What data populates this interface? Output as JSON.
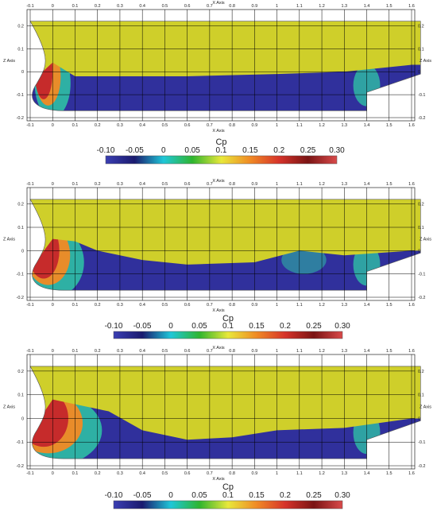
{
  "legend": {
    "title": "Cp",
    "ticks": [
      "-0.10",
      "-0.05",
      "0",
      "0.05",
      "0.1",
      "0.15",
      "0.2",
      "0.25",
      "0.30"
    ],
    "colors": [
      "#3b3fb3",
      "#1a1a6e",
      "#1fc7d8",
      "#2fb52f",
      "#e8e83a",
      "#f08a25",
      "#d6332a",
      "#7a1414",
      "#d94a4a"
    ]
  },
  "axes": {
    "x_title": "X Axis",
    "z_title": "Z Axis",
    "x_ticks": [
      "-0.1",
      "0",
      "0.1",
      "0.2",
      "0.3",
      "0.4",
      "0.5",
      "0.6",
      "0.7",
      "0.8",
      "0.9",
      "1",
      "1.1",
      "1.2",
      "1.3",
      "1.4",
      "1.5",
      "1.6"
    ],
    "z_ticks": [
      "0.2",
      "0.1",
      "0",
      "-0.1",
      "-0.2"
    ]
  },
  "colors": {
    "hull_above": "#cfcf2a",
    "hull_below": "#30309c",
    "high_pressure": "#c62b2b",
    "mid_pressure": "#e88c2a",
    "low_pressure": "#2fbfa5",
    "grid": "#000000"
  },
  "chart_data": [
    {
      "type": "heatmap",
      "title": "",
      "xlabel": "X Axis",
      "ylabel": "Z Axis",
      "xlim": [
        -0.1,
        1.6
      ],
      "ylim": [
        -0.2,
        0.2
      ],
      "x_ticks": [
        -0.1,
        0,
        0.1,
        0.2,
        0.3,
        0.4,
        0.5,
        0.6,
        0.7,
        0.8,
        0.9,
        1,
        1.1,
        1.2,
        1.3,
        1.4,
        1.5,
        1.6
      ],
      "z_ticks": [
        0.2,
        0.1,
        0,
        -0.1,
        -0.2
      ],
      "waterline": [
        [
          -0.1,
          -0.05
        ],
        [
          0.0,
          0.04
        ],
        [
          0.05,
          0.01
        ],
        [
          0.1,
          -0.02
        ],
        [
          0.3,
          -0.02
        ],
        [
          0.6,
          -0.02
        ],
        [
          1.0,
          -0.01
        ],
        [
          1.3,
          0.0
        ],
        [
          1.6,
          0.03
        ]
      ],
      "colorbar": {
        "label": "Cp",
        "range": [
          -0.1,
          0.3
        ]
      }
    },
    {
      "type": "heatmap",
      "title": "",
      "xlabel": "X Axis",
      "ylabel": "Z Axis",
      "xlim": [
        -0.1,
        1.6
      ],
      "ylim": [
        -0.2,
        0.2
      ],
      "x_ticks": [
        -0.1,
        0,
        0.1,
        0.2,
        0.3,
        0.4,
        0.5,
        0.6,
        0.7,
        0.8,
        0.9,
        1,
        1.1,
        1.2,
        1.3,
        1.4,
        1.5,
        1.6
      ],
      "z_ticks": [
        0.2,
        0.1,
        0,
        -0.1,
        -0.2
      ],
      "waterline": [
        [
          -0.1,
          -0.08
        ],
        [
          0.0,
          0.05
        ],
        [
          0.1,
          0.04
        ],
        [
          0.2,
          0.0
        ],
        [
          0.4,
          -0.04
        ],
        [
          0.6,
          -0.06
        ],
        [
          0.9,
          -0.05
        ],
        [
          1.1,
          0.0
        ],
        [
          1.3,
          -0.02
        ],
        [
          1.6,
          0.0
        ]
      ],
      "colorbar": {
        "label": "Cp",
        "range": [
          -0.1,
          0.3
        ]
      }
    },
    {
      "type": "heatmap",
      "title": "",
      "xlabel": "X Axis",
      "ylabel": "Z Axis",
      "xlim": [
        -0.1,
        1.6
      ],
      "ylim": [
        -0.2,
        0.2
      ],
      "x_ticks": [
        -0.1,
        0,
        0.1,
        0.2,
        0.3,
        0.4,
        0.5,
        0.6,
        0.7,
        0.8,
        0.9,
        1,
        1.1,
        1.2,
        1.3,
        1.4,
        1.5,
        1.6
      ],
      "z_ticks": [
        0.2,
        0.1,
        0,
        -0.1,
        -0.2
      ],
      "waterline": [
        [
          -0.1,
          -0.06
        ],
        [
          0.0,
          0.08
        ],
        [
          0.1,
          0.06
        ],
        [
          0.25,
          0.03
        ],
        [
          0.4,
          -0.05
        ],
        [
          0.6,
          -0.09
        ],
        [
          0.8,
          -0.08
        ],
        [
          1.0,
          -0.05
        ],
        [
          1.3,
          -0.04
        ],
        [
          1.6,
          0.0
        ]
      ],
      "colorbar": {
        "label": "Cp",
        "range": [
          -0.1,
          0.3
        ]
      }
    }
  ]
}
